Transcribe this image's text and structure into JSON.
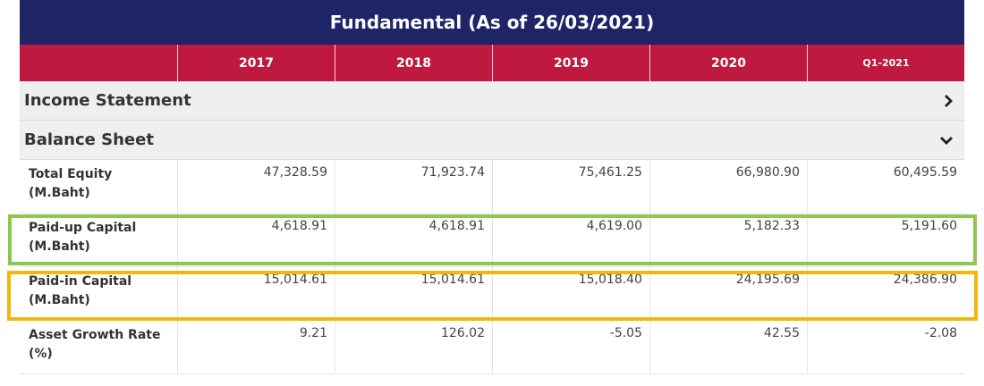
{
  "title": "Fundamental (As of 26/03/2021)",
  "columns": [
    "2017",
    "2018",
    "2019",
    "2020",
    "Q1-2021"
  ],
  "sections": {
    "income_statement": {
      "label": "Income Statement",
      "icon": "chevron-right-icon"
    },
    "balance_sheet": {
      "label": "Balance Sheet",
      "icon": "chevron-down-icon"
    }
  },
  "rows": [
    {
      "label_line1": "Total Equity",
      "label_line2": "(M.Baht)",
      "values": [
        "47,328.59",
        "71,923.74",
        "75,461.25",
        "66,980.90",
        "60,495.59"
      ]
    },
    {
      "label_line1": "Paid-up Capital",
      "label_line2": "(M.Baht)",
      "values": [
        "4,618.91",
        "4,618.91",
        "4,619.00",
        "5,182.33",
        "5,191.60"
      ]
    },
    {
      "label_line1": "Paid-in Capital",
      "label_line2": "(M.Baht)",
      "values": [
        "15,014.61",
        "15,014.61",
        "15,018.40",
        "24,195.69",
        "24,386.90"
      ]
    },
    {
      "label_line1": "Asset Growth Rate",
      "label_line2": "(%)",
      "values": [
        "9.21",
        "126.02",
        "-5.05",
        "42.55",
        "-2.08"
      ]
    }
  ],
  "highlights": {
    "paid_up_color": "#8cc84b",
    "paid_in_color": "#f1b70d"
  },
  "colors": {
    "title_bg": "#1e2466",
    "header_bg": "#c0193f",
    "section_bg": "#efefef"
  }
}
